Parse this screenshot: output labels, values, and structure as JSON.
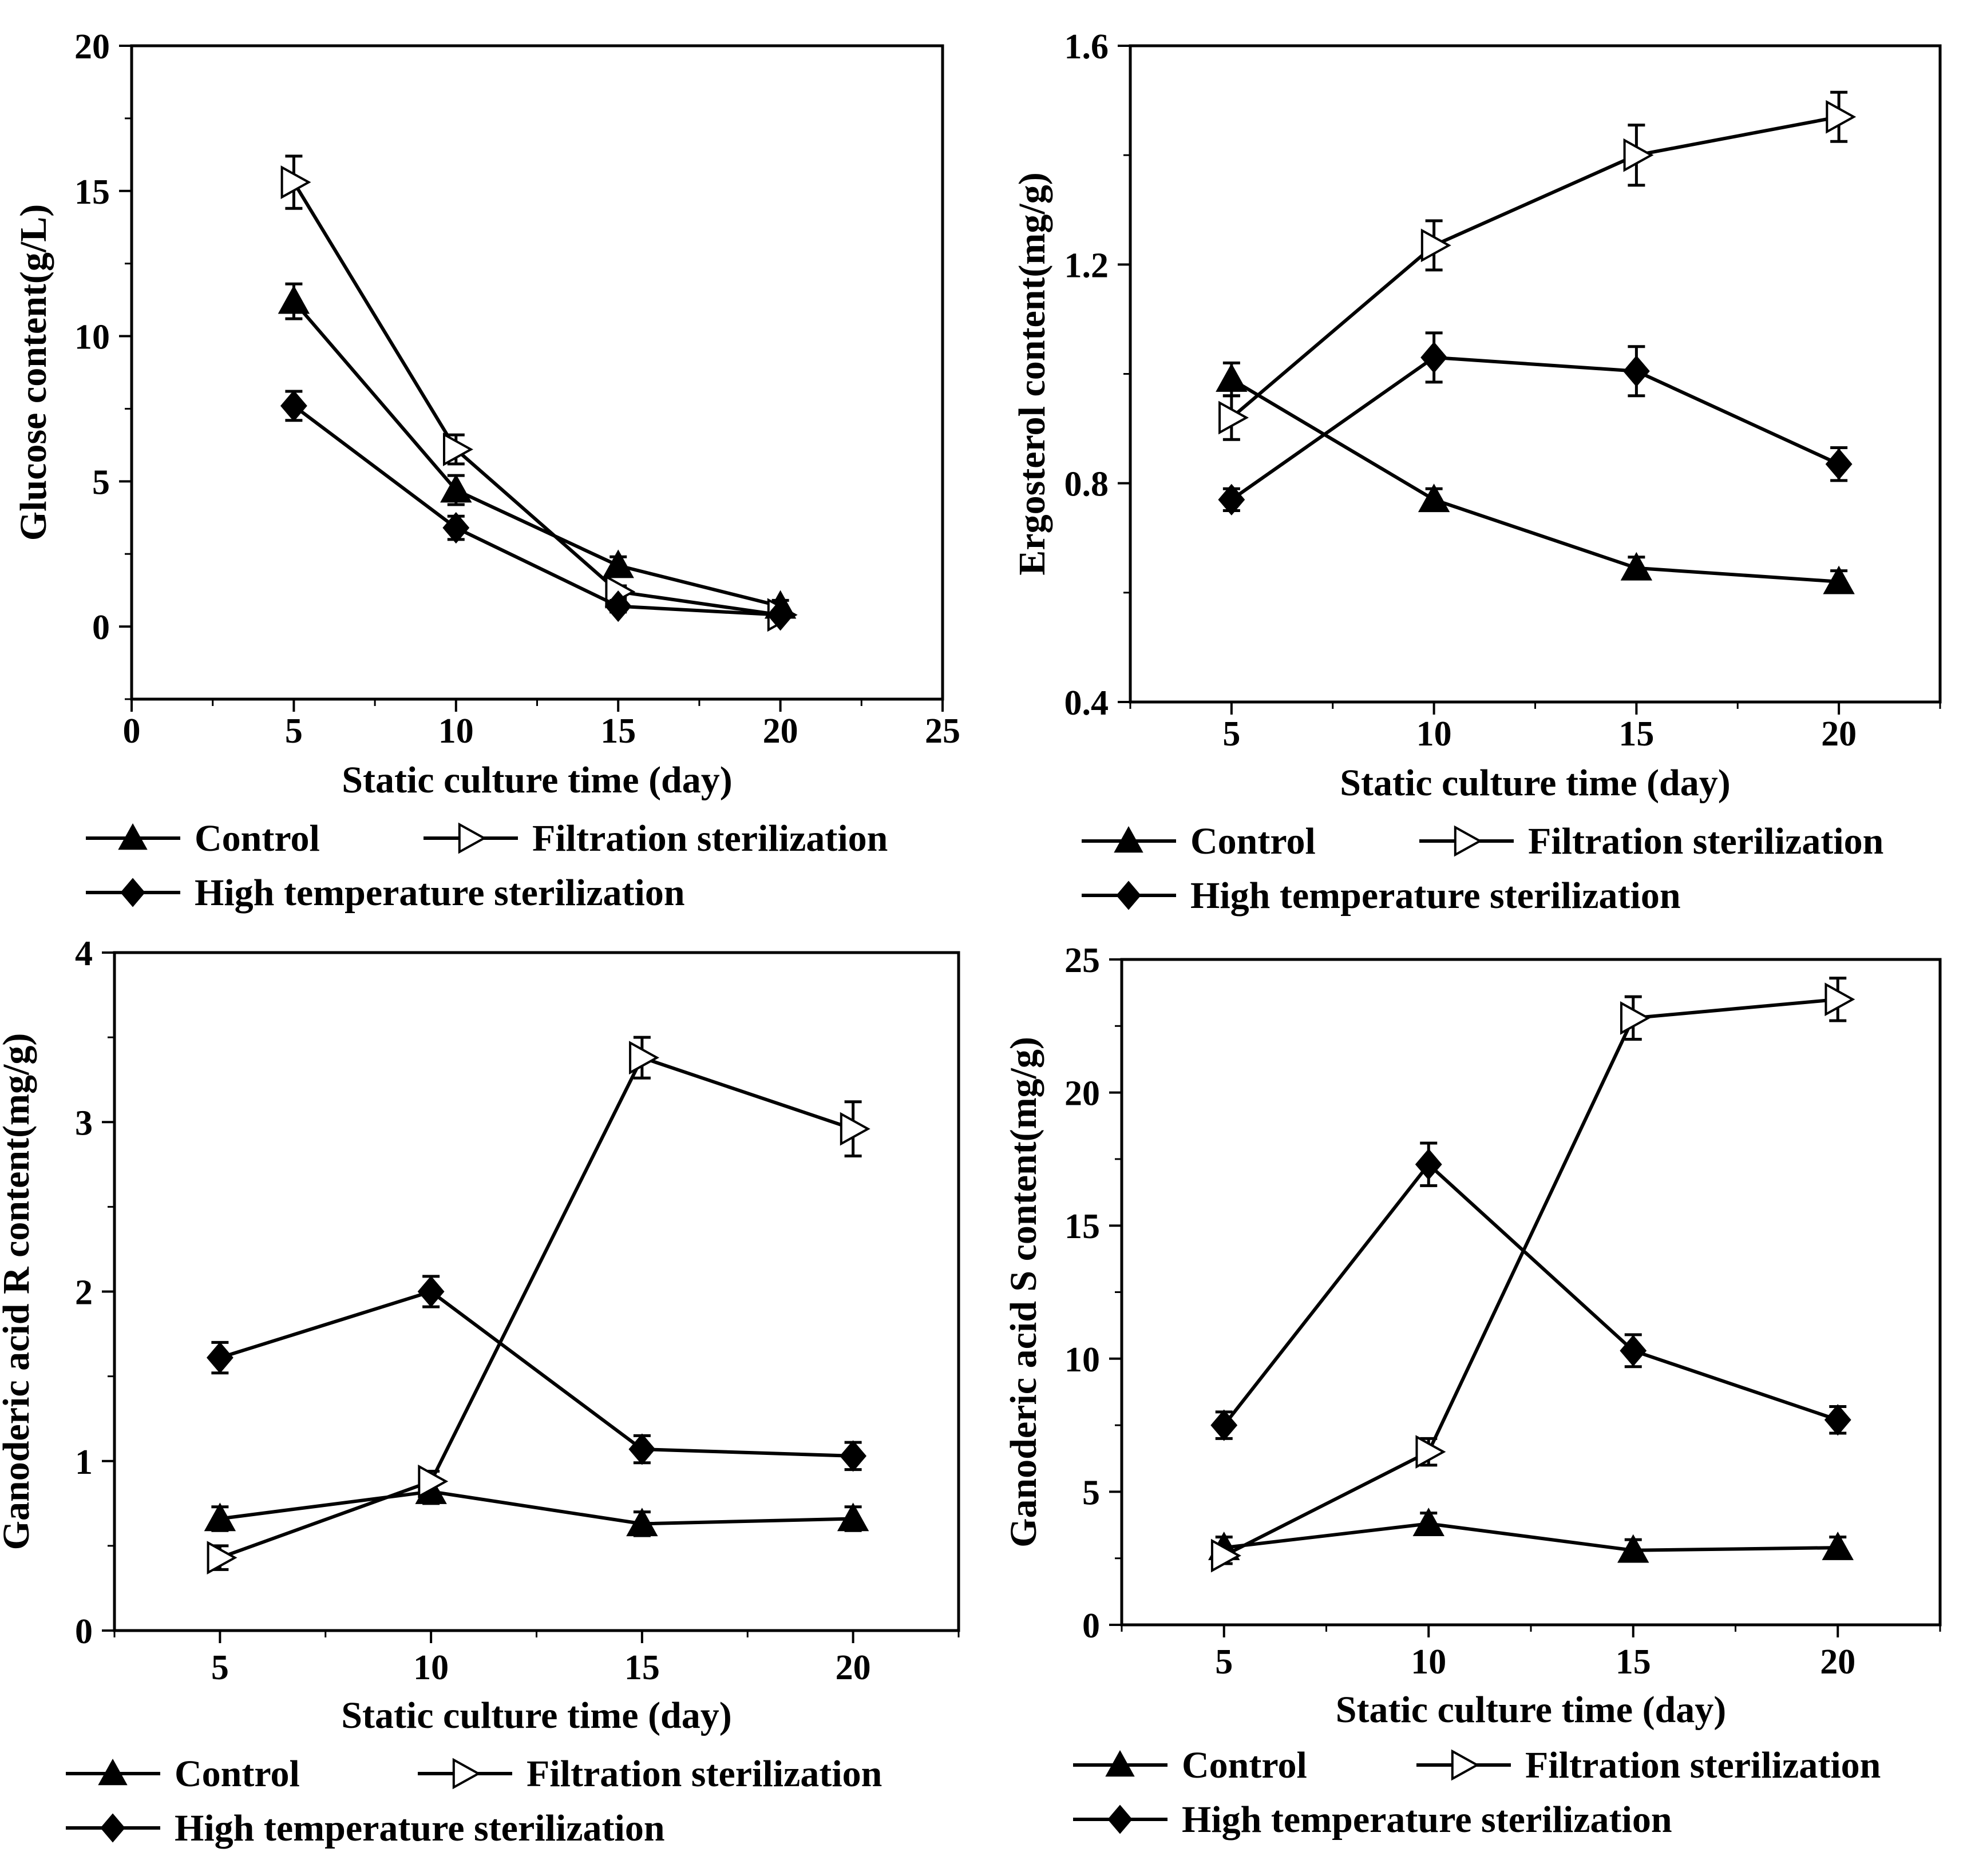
{
  "figure": {
    "legend_labels": {
      "control": "Control",
      "filtration": "Filtration sterilization",
      "high_temp": "High temperature sterilization"
    }
  },
  "chart_data": [
    {
      "id": "glucose",
      "type": "line",
      "title": "",
      "xlabel": "Static culture time (day)",
      "ylabel": "Glucose content(g/L)",
      "xlim": [
        0,
        25
      ],
      "ylim": [
        -2.5,
        20
      ],
      "xticks": [
        0,
        5,
        10,
        15,
        20,
        25
      ],
      "xtick_labels": [
        "0",
        "5",
        "10",
        "15",
        "20",
        "25"
      ],
      "yticks": [
        0,
        5,
        10,
        15,
        20
      ],
      "ytick_labels": [
        "0",
        "5",
        "10",
        "15",
        "20"
      ],
      "x": [
        5,
        10,
        15,
        20
      ],
      "series": [
        {
          "key": "control",
          "name": "Control",
          "marker": "triangle-up",
          "values": [
            11.2,
            4.7,
            2.1,
            0.7
          ],
          "errors": [
            0.6,
            0.5,
            0.3,
            0.2
          ]
        },
        {
          "key": "filtration",
          "name": "Filtration sterilization",
          "marker": "triangle-right-open",
          "values": [
            15.3,
            6.1,
            1.2,
            0.4
          ],
          "errors": [
            0.9,
            0.5,
            0.2,
            0.1
          ]
        },
        {
          "key": "high_temp",
          "name": "High temperature sterilization",
          "marker": "diamond",
          "values": [
            7.6,
            3.4,
            0.7,
            0.4
          ],
          "errors": [
            0.5,
            0.4,
            0.2,
            0.1
          ]
        }
      ]
    },
    {
      "id": "ergosterol",
      "type": "line",
      "title": "",
      "xlabel": "Static culture time (day)",
      "ylabel": "Ergosterol content(mg/g)",
      "xlim": [
        2.5,
        22.5
      ],
      "ylim": [
        0.4,
        1.6
      ],
      "xticks": [
        5,
        10,
        15,
        20
      ],
      "xtick_labels": [
        "5",
        "10",
        "15",
        "20"
      ],
      "yticks": [
        0.4,
        0.8,
        1.2,
        1.6
      ],
      "ytick_labels": [
        "0.4",
        "0.8",
        "1.2",
        "1.6"
      ],
      "x": [
        5,
        10,
        15,
        20
      ],
      "series": [
        {
          "key": "control",
          "name": "Control",
          "marker": "triangle-up",
          "values": [
            0.99,
            0.77,
            0.645,
            0.62
          ],
          "errors": [
            0.03,
            0.02,
            0.02,
            0.02
          ]
        },
        {
          "key": "filtration",
          "name": "Filtration sterilization",
          "marker": "triangle-right-open",
          "values": [
            0.92,
            1.235,
            1.4,
            1.47
          ],
          "errors": [
            0.04,
            0.045,
            0.055,
            0.045
          ]
        },
        {
          "key": "high_temp",
          "name": "High temperature sterilization",
          "marker": "diamond",
          "values": [
            0.77,
            1.03,
            1.005,
            0.835
          ],
          "errors": [
            0.02,
            0.045,
            0.045,
            0.03
          ]
        }
      ]
    },
    {
      "id": "ganoderic_r",
      "type": "line",
      "title": "",
      "xlabel": "Static culture time (day)",
      "ylabel": "Ganoderic acid R content(mg/g)",
      "xlim": [
        2.5,
        22.5
      ],
      "ylim": [
        0,
        4
      ],
      "xticks": [
        5,
        10,
        15,
        20
      ],
      "xtick_labels": [
        "5",
        "10",
        "15",
        "20"
      ],
      "yticks": [
        0,
        1,
        2,
        3,
        4
      ],
      "ytick_labels": [
        "0",
        "1",
        "2",
        "3",
        "4"
      ],
      "x": [
        5,
        10,
        15,
        20
      ],
      "series": [
        {
          "key": "control",
          "name": "Control",
          "marker": "triangle-up",
          "values": [
            0.66,
            0.82,
            0.63,
            0.66
          ],
          "errors": [
            0.07,
            0.07,
            0.07,
            0.07
          ]
        },
        {
          "key": "filtration",
          "name": "Filtration sterilization",
          "marker": "triangle-right-open",
          "values": [
            0.43,
            0.88,
            3.38,
            2.96
          ],
          "errors": [
            0.07,
            0.06,
            0.12,
            0.16
          ]
        },
        {
          "key": "high_temp",
          "name": "High temperature sterilization",
          "marker": "diamond",
          "values": [
            1.61,
            2.0,
            1.07,
            1.03
          ],
          "errors": [
            0.09,
            0.09,
            0.08,
            0.08
          ]
        }
      ]
    },
    {
      "id": "ganoderic_s",
      "type": "line",
      "title": "",
      "xlabel": "Static culture time (day)",
      "ylabel": "Ganoderic acid S content(mg/g)",
      "xlim": [
        2.5,
        22.5
      ],
      "ylim": [
        0,
        25
      ],
      "xticks": [
        5,
        10,
        15,
        20
      ],
      "xtick_labels": [
        "5",
        "10",
        "15",
        "20"
      ],
      "yticks": [
        0,
        5,
        10,
        15,
        20,
        25
      ],
      "ytick_labels": [
        "0",
        "5",
        "10",
        "15",
        "20",
        "25"
      ],
      "x": [
        5,
        10,
        15,
        20
      ],
      "series": [
        {
          "key": "control",
          "name": "Control",
          "marker": "triangle-up",
          "values": [
            2.9,
            3.8,
            2.8,
            2.9
          ],
          "errors": [
            0.4,
            0.4,
            0.4,
            0.4
          ]
        },
        {
          "key": "filtration",
          "name": "Filtration sterilization",
          "marker": "triangle-right-open",
          "values": [
            2.6,
            6.5,
            22.8,
            23.5
          ],
          "errors": [
            0.3,
            0.5,
            0.8,
            0.8
          ]
        },
        {
          "key": "high_temp",
          "name": "High temperature sterilization",
          "marker": "diamond",
          "values": [
            7.5,
            17.3,
            10.3,
            7.7
          ],
          "errors": [
            0.5,
            0.8,
            0.6,
            0.5
          ]
        }
      ]
    }
  ]
}
